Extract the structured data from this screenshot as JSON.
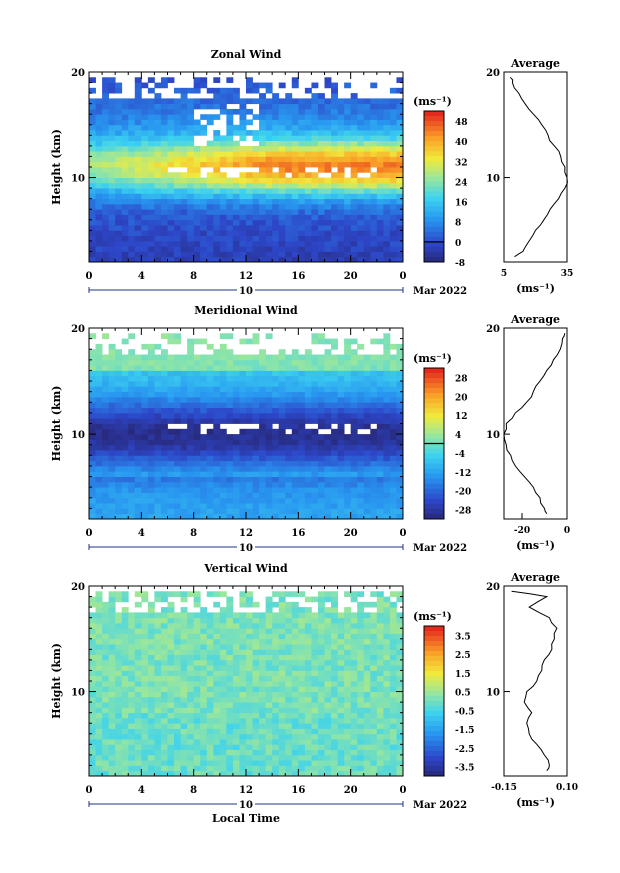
{
  "common": {
    "x_ticks": [
      "0",
      "4",
      "8",
      "12",
      "16",
      "20",
      "0"
    ],
    "date_day": "10",
    "month_year": "Mar 2022",
    "ylabel": "Height (km)",
    "y_ticks": [
      "20",
      "10"
    ],
    "unit": "(ms⁻¹)",
    "xlabel": "Local Time",
    "avg_title": "Average"
  },
  "chart_data": [
    {
      "type": "heatmap",
      "title": "Zonal Wind",
      "x_range_hours": [
        0,
        24
      ],
      "y_range_km": [
        2,
        20
      ],
      "colorbar_ticks": [
        "48",
        "40",
        "32",
        "24",
        "16",
        "8",
        "0",
        "-8"
      ],
      "colorbar_range": [
        -8,
        52
      ],
      "zero_contour_value": 0,
      "profile": {
        "title": "Average",
        "xlim": [
          5,
          35
        ],
        "x_ticks": [
          "5",
          "35"
        ],
        "height_km": [
          2.5,
          3,
          4,
          5,
          6,
          7,
          8,
          9,
          10,
          11,
          12,
          13,
          14,
          15,
          16,
          17,
          18,
          19,
          19.5
        ],
        "values": [
          10,
          14,
          17,
          20,
          24,
          27,
          31,
          34,
          35,
          34,
          32,
          29,
          26,
          23,
          19,
          15,
          12,
          9,
          8
        ]
      }
    },
    {
      "type": "heatmap",
      "title": "Meridional Wind",
      "x_range_hours": [
        0,
        24
      ],
      "y_range_km": [
        2,
        20
      ],
      "colorbar_ticks": [
        "28",
        "20",
        "12",
        "4",
        "-4",
        "-12",
        "-20",
        "-28"
      ],
      "colorbar_range": [
        -32,
        32
      ],
      "zero_contour_value": 0,
      "profile": {
        "title": "Average",
        "xlim": [
          -28,
          0
        ],
        "x_ticks": [
          "-20",
          "0"
        ],
        "height_km": [
          2.5,
          3,
          4,
          5,
          6,
          7,
          8,
          9,
          10,
          11,
          12,
          13,
          14,
          15,
          16,
          17,
          18,
          19,
          19.5
        ],
        "values": [
          -9,
          -10,
          -12,
          -15,
          -19,
          -23,
          -25,
          -27,
          -28,
          -27,
          -23,
          -18,
          -15,
          -12,
          -9,
          -6,
          -3,
          -2,
          -1
        ]
      }
    },
    {
      "type": "heatmap",
      "title": "Vertical Wind",
      "xlabel": "Local Time",
      "x_range_hours": [
        0,
        24
      ],
      "y_range_km": [
        2,
        20
      ],
      "colorbar_ticks": [
        "3.5",
        "2.5",
        "1.5",
        "0.5",
        "-0.5",
        "-1.5",
        "-2.5",
        "-3.5"
      ],
      "colorbar_range": [
        -4,
        4
      ],
      "profile": {
        "title": "Average",
        "xlim": [
          -0.15,
          0.1
        ],
        "x_ticks": [
          "-0.15",
          "0.10"
        ],
        "height_km": [
          2.5,
          3,
          4,
          5,
          6,
          7,
          8,
          9,
          10,
          11,
          12,
          13,
          14,
          15,
          16,
          17,
          18,
          19,
          19.5
        ],
        "values": [
          0.02,
          0.03,
          0.01,
          -0.02,
          -0.05,
          -0.06,
          -0.04,
          -0.07,
          -0.06,
          -0.02,
          0.0,
          0.01,
          0.04,
          0.05,
          0.06,
          0.03,
          -0.05,
          0.02,
          -0.12
        ]
      }
    }
  ]
}
